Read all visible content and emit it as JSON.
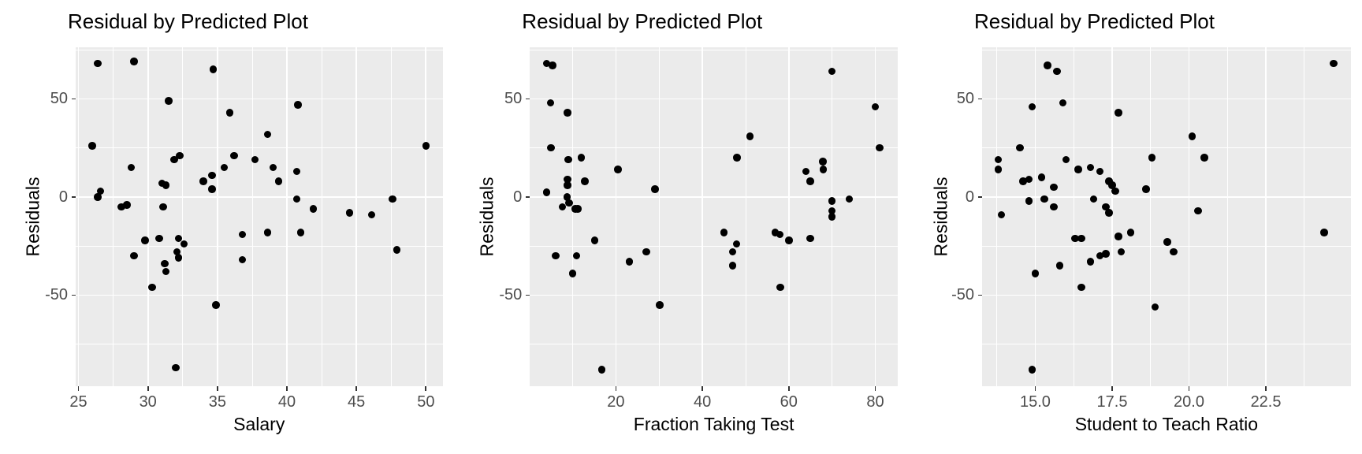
{
  "figure": {
    "background_color": "#ffffff",
    "panel_background_color": "#EBEBEB",
    "gridline_color": "#ffffff",
    "point_color": "#000000",
    "tick_label_color": "#4D4D4D",
    "axis_title_color": "#000000",
    "title_color": "#000000"
  },
  "chart_data": [
    {
      "type": "scatter",
      "title": "Residual by Predicted Plot",
      "xlabel": "Salary",
      "ylabel": "Residuals",
      "xlim": [
        24.8,
        51.2
      ],
      "ylim": [
        -96.4,
        76.5
      ],
      "xticks": {
        "values": [
          25,
          30,
          35,
          40,
          45,
          50
        ],
        "labels": [
          "25",
          "30",
          "35",
          "40",
          "45",
          "50"
        ]
      },
      "xminor": [
        27.5,
        32.5,
        37.5,
        42.5,
        47.5
      ],
      "yticks": {
        "values": [
          -50,
          0,
          50
        ],
        "labels": [
          "-50",
          "0",
          "50"
        ]
      },
      "yminor": [
        -75,
        -25,
        25,
        75
      ],
      "grid": true,
      "legend": "none",
      "points": [
        [
          26.4,
          68
        ],
        [
          29.0,
          69
        ],
        [
          34.7,
          65
        ],
        [
          31.5,
          49
        ],
        [
          35.9,
          43
        ],
        [
          40.8,
          47
        ],
        [
          38.6,
          32
        ],
        [
          26.0,
          26
        ],
        [
          50.0,
          26
        ],
        [
          28.8,
          15
        ],
        [
          31.9,
          19
        ],
        [
          32.3,
          21
        ],
        [
          35.5,
          15
        ],
        [
          36.2,
          21
        ],
        [
          37.7,
          19
        ],
        [
          39.0,
          15
        ],
        [
          40.7,
          13
        ],
        [
          34.0,
          8
        ],
        [
          34.6,
          11
        ],
        [
          34.6,
          4
        ],
        [
          31.0,
          7
        ],
        [
          31.3,
          6
        ],
        [
          26.6,
          3
        ],
        [
          26.4,
          0
        ],
        [
          28.1,
          -5
        ],
        [
          28.5,
          -4
        ],
        [
          31.1,
          -5
        ],
        [
          39.4,
          8
        ],
        [
          40.7,
          -1
        ],
        [
          41.9,
          -6
        ],
        [
          44.5,
          -8
        ],
        [
          46.1,
          -9
        ],
        [
          47.6,
          -1
        ],
        [
          29.8,
          -22
        ],
        [
          30.8,
          -21
        ],
        [
          32.2,
          -21
        ],
        [
          32.6,
          -24
        ],
        [
          29.0,
          -30
        ],
        [
          32.1,
          -28
        ],
        [
          32.2,
          -31
        ],
        [
          31.2,
          -34
        ],
        [
          31.3,
          -38
        ],
        [
          30.3,
          -46
        ],
        [
          34.9,
          -55
        ],
        [
          36.8,
          -19
        ],
        [
          36.8,
          -32
        ],
        [
          38.6,
          -18
        ],
        [
          41.0,
          -18
        ],
        [
          47.9,
          -27
        ],
        [
          32.0,
          -87
        ]
      ]
    },
    {
      "type": "scatter",
      "title": "Residual by Predicted Plot",
      "xlabel": "Fraction Taking Test",
      "ylabel": "Residuals",
      "xlim": [
        0.1,
        85.2
      ],
      "ylim": [
        -96.4,
        76.5
      ],
      "xticks": {
        "values": [
          20,
          40,
          60,
          80
        ],
        "labels": [
          "20",
          "40",
          "60",
          "80"
        ]
      },
      "xminor": [
        10,
        30,
        50,
        70
      ],
      "yticks": {
        "values": [
          -50,
          0,
          50
        ],
        "labels": [
          "-50",
          "0",
          "50"
        ]
      },
      "yminor": [
        -75,
        -25,
        25,
        75
      ],
      "grid": true,
      "legend": "none",
      "points": [
        [
          4.0,
          68
        ],
        [
          5.3,
          67
        ],
        [
          4.9,
          48
        ],
        [
          8.8,
          43
        ],
        [
          5.0,
          25
        ],
        [
          9.0,
          19
        ],
        [
          12.0,
          20
        ],
        [
          20.5,
          14
        ],
        [
          8.8,
          9
        ],
        [
          8.8,
          6
        ],
        [
          12.8,
          8
        ],
        [
          29.0,
          4
        ],
        [
          4.0,
          2.5
        ],
        [
          8.7,
          0
        ],
        [
          7.6,
          -5
        ],
        [
          9.2,
          -3
        ],
        [
          10.6,
          -6
        ],
        [
          11.2,
          -6
        ],
        [
          15.1,
          -22
        ],
        [
          6.1,
          -30
        ],
        [
          10.9,
          -30
        ],
        [
          10.0,
          -39
        ],
        [
          23.1,
          -33
        ],
        [
          27.0,
          -28
        ],
        [
          30.1,
          -55
        ],
        [
          16.7,
          -88
        ],
        [
          70.0,
          64
        ],
        [
          80.0,
          46
        ],
        [
          81.0,
          25
        ],
        [
          51.0,
          31
        ],
        [
          48.0,
          20
        ],
        [
          67.9,
          18
        ],
        [
          68.0,
          14
        ],
        [
          64.0,
          13
        ],
        [
          65.0,
          8
        ],
        [
          70.0,
          -2
        ],
        [
          74.0,
          -1
        ],
        [
          70.0,
          -7
        ],
        [
          70.0,
          -10
        ],
        [
          45.0,
          -18
        ],
        [
          47.9,
          -24
        ],
        [
          47.0,
          -28
        ],
        [
          47.0,
          -35
        ],
        [
          56.8,
          -18
        ],
        [
          57.9,
          -19
        ],
        [
          60.0,
          -22
        ],
        [
          65.0,
          -21
        ],
        [
          58.0,
          -46
        ]
      ]
    },
    {
      "type": "scatter",
      "title": "Residual by Predicted Plot",
      "xlabel": "Student to Teach Ratio",
      "ylabel": "Residuals",
      "xlim": [
        13.27,
        25.26
      ],
      "ylim": [
        -96.4,
        76.5
      ],
      "xticks": {
        "values": [
          15.0,
          17.5,
          20.0,
          22.5
        ],
        "labels": [
          "15.0",
          "17.5",
          "20.0",
          "22.5"
        ]
      },
      "xminor": [
        13.75,
        16.25,
        18.75,
        21.25,
        23.75
      ],
      "yticks": {
        "values": [
          -50,
          0,
          50
        ],
        "labels": [
          "-50",
          "0",
          "50"
        ]
      },
      "yminor": [
        -75,
        -25,
        25,
        75
      ],
      "grid": true,
      "legend": "none",
      "points": [
        [
          15.4,
          67
        ],
        [
          15.7,
          64
        ],
        [
          24.7,
          68
        ],
        [
          14.9,
          46
        ],
        [
          15.9,
          48
        ],
        [
          17.7,
          43
        ],
        [
          14.5,
          25
        ],
        [
          13.8,
          19
        ],
        [
          13.8,
          14
        ],
        [
          16.0,
          19
        ],
        [
          16.4,
          14
        ],
        [
          16.8,
          15
        ],
        [
          17.1,
          13
        ],
        [
          14.6,
          8
        ],
        [
          14.8,
          9
        ],
        [
          15.2,
          10
        ],
        [
          15.6,
          5
        ],
        [
          17.4,
          8
        ],
        [
          17.5,
          6
        ],
        [
          17.6,
          3
        ],
        [
          18.6,
          4
        ],
        [
          18.8,
          20
        ],
        [
          20.1,
          31
        ],
        [
          20.5,
          20
        ],
        [
          14.8,
          -2
        ],
        [
          15.3,
          -1
        ],
        [
          15.6,
          -5
        ],
        [
          16.9,
          -1
        ],
        [
          13.9,
          -9
        ],
        [
          17.3,
          -5
        ],
        [
          17.4,
          -8
        ],
        [
          16.3,
          -21
        ],
        [
          16.5,
          -21
        ],
        [
          17.7,
          -20
        ],
        [
          18.1,
          -18
        ],
        [
          19.3,
          -23
        ],
        [
          19.5,
          -28
        ],
        [
          17.8,
          -28
        ],
        [
          17.1,
          -30
        ],
        [
          17.3,
          -29
        ],
        [
          16.8,
          -33
        ],
        [
          15.8,
          -35
        ],
        [
          15.0,
          -39
        ],
        [
          16.5,
          -46
        ],
        [
          18.9,
          -56
        ],
        [
          14.9,
          -88
        ],
        [
          20.3,
          -7
        ],
        [
          24.4,
          -18
        ]
      ]
    }
  ]
}
